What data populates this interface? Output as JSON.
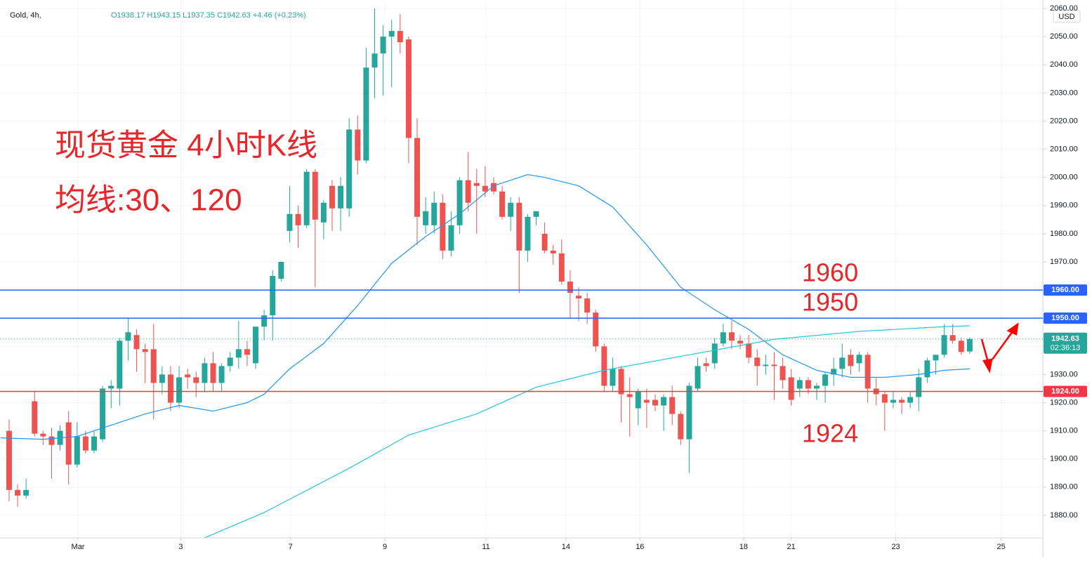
{
  "chart_data": {
    "type": "candlestick",
    "symbol": "Gold, 4h,",
    "ohlc_label": "O1938.17 H1943.15 L1937.35 C1942.63 +4.46 (+0.23%)",
    "currency": "USD",
    "annotations": [
      "现货黄金 4小时K线",
      "均线:30、120",
      "1960",
      "1950",
      "1924"
    ],
    "up_color": "#26a69a",
    "down_color": "#ef5350",
    "open": [
      1910,
      1889,
      1887,
      1920.5,
      1909,
      1908,
      1905,
      1913,
      1898,
      1908,
      1903,
      1907,
      1925,
      1925,
      1942,
      1944,
      1939,
      1939,
      1927,
      1930,
      1920,
      1930,
      1929,
      1927,
      1934,
      1927,
      1933,
      1936,
      1939,
      1934,
      1947,
      1951,
      1964,
      1981,
      1987,
      1983,
      2002,
      1984,
      1997,
      1989,
      1989,
      2017,
      2006,
      2039,
      2044,
      2050,
      2052,
      2049,
      2014,
      1983,
      1983,
      1991,
      1974,
      1983,
      1999,
      1998,
      1997,
      1998,
      1995,
      1986,
      1991,
      1974,
      1986,
      1980,
      1974,
      1973,
      1963,
      1958,
      1957,
      1952,
      1940,
      1926,
      1932,
      1923,
      1918,
      1921,
      1921,
      1919,
      1922,
      1916,
      1907,
      1925,
      1934,
      1934,
      1941,
      1945,
      1942,
      1941,
      1936,
      1933,
      1933.5,
      1933,
      1929,
      1925,
      1928,
      1925,
      1926,
      1930,
      1932,
      1937,
      1934,
      1937,
      1925,
      1923,
      1920,
      1921,
      1920,
      1922,
      1929,
      1935,
      1937,
      1944,
      1942,
      1938.17
    ],
    "high": [
      1914,
      1891,
      1893,
      1924,
      1910,
      1911,
      1912,
      1917,
      1913,
      1910,
      1910,
      1926,
      1928,
      1943,
      1950,
      1946,
      1941,
      1948,
      1933,
      1933,
      1933,
      1932,
      1931,
      1936,
      1938,
      1934,
      1938,
      1949,
      1942,
      1947,
      1953,
      1967,
      1970,
      1997,
      1990,
      2003,
      2003,
      1992,
      1999,
      2000,
      2021,
      2022,
      2046,
      2060,
      2054,
      2056,
      2058,
      2050,
      2021,
      1993,
      1995,
      1994,
      1988,
      2000,
      2009,
      2003,
      2004,
      2000,
      1997,
      1993,
      1993,
      1987,
      1988,
      1984,
      1976,
      1978,
      1967,
      1961,
      1959,
      1953,
      1941,
      1936,
      1933,
      1929,
      1925,
      1925,
      1923,
      1923,
      1926,
      1917,
      1927,
      1936,
      1936,
      1943,
      1948,
      1949,
      1944,
      1944,
      1939,
      1937,
      1938,
      1936,
      1932,
      1929,
      1929,
      1927,
      1931,
      1936,
      1941,
      1939,
      1938,
      1938,
      1929,
      1924,
      1924,
      1922,
      1924,
      1932,
      1936,
      1937,
      1948,
      1948,
      1943,
      1943.15
    ],
    "low": [
      1885,
      1883,
      1886,
      1908,
      1905,
      1893,
      1903,
      1891,
      1897,
      1902,
      1902,
      1906,
      1918,
      1919,
      1935,
      1931,
      1927,
      1914,
      1923,
      1917,
      1918,
      1925,
      1922,
      1924,
      1924,
      1924,
      1931,
      1932,
      1933,
      1932,
      1942,
      1942,
      1963,
      1977,
      1975,
      1982,
      1961,
      1978,
      1981,
      1981,
      1986,
      2001,
      2005,
      2028,
      2029,
      2032,
      2044,
      2005,
      1976,
      1980,
      1980,
      1971,
      1972,
      1980,
      1988,
      1980,
      1993,
      1994,
      1985,
      1981,
      1959,
      1970,
      1983,
      1973,
      1969,
      1962,
      1950,
      1949,
      1948,
      1938,
      1924,
      1924,
      1913,
      1908,
      1912,
      1911,
      1917,
      1910,
      1912,
      1905,
      1895,
      1924,
      1931,
      1932,
      1940,
      1939,
      1939,
      1934,
      1926,
      1930,
      1921,
      1925,
      1919,
      1922,
      1923,
      1921,
      1920,
      1926,
      1929,
      1930,
      1931,
      1920,
      1919,
      1910,
      1918,
      1916,
      1918,
      1917,
      1927,
      1930,
      1936,
      1941,
      1937,
      1937.35
    ],
    "close": [
      1889,
      1887,
      1889,
      1909,
      1908,
      1905,
      1910,
      1898,
      1908,
      1903,
      1908,
      1925,
      1926,
      1942,
      1945,
      1939,
      1938,
      1927,
      1930,
      1920,
      1929,
      1929,
      1927,
      1934,
      1927,
      1933,
      1936,
      1939,
      1937,
      1947,
      1951,
      1965,
      1970,
      1987,
      1983,
      2002,
      1985,
      1991,
      1989,
      1997,
      2017,
      2006,
      2039,
      2044,
      2050,
      2052,
      2048,
      2014,
      1986,
      1988,
      1991,
      1974,
      1983,
      1999,
      1991,
      1997,
      1995,
      1995,
      1986,
      1991,
      1974,
      1986,
      1988,
      1974,
      1973,
      1963,
      1959,
      1957,
      1952,
      1940,
      1926,
      1932,
      1923,
      1922,
      1924,
      1920,
      1919,
      1922,
      1916,
      1907,
      1926,
      1933,
      1933,
      1941,
      1945,
      1942,
      1941,
      1936,
      1933,
      1933.5,
      1933,
      1928,
      1921,
      1928,
      1925,
      1926,
      1930,
      1932,
      1936,
      1933,
      1937,
      1925,
      1923,
      1920,
      1921,
      1920,
      1922,
      1929,
      1935,
      1937,
      1944,
      1942,
      1938,
      1942.63
    ],
    "lines": [
      {
        "color": "#2196f3",
        "x": [
          -1,
          4,
          8,
          12,
          16,
          20,
          24,
          28,
          30,
          33,
          37,
          41,
          45,
          49,
          53,
          57,
          61,
          63,
          67,
          71,
          75,
          79,
          83,
          87,
          91,
          95,
          99,
          103,
          107,
          110,
          113
        ],
        "values": [
          1907.5,
          1907,
          1908,
          1912,
          1916,
          1919,
          1917,
          1920,
          1923,
          1932,
          1941,
          1954.5,
          1969.5,
          1979,
          1987,
          1997,
          2001,
          2000,
          1997,
          1989.5,
          1976,
          1961,
          1953,
          1946,
          1937,
          1931.5,
          1929,
          1929,
          1930,
          1931.5,
          1932
        ]
      },
      {
        "color": "#26c6da",
        "x": [
          23,
          30,
          40,
          47,
          55,
          62,
          70,
          80,
          90,
          100,
          110,
          113
        ],
        "values": [
          1872,
          1881,
          1896.7,
          1908.5,
          1916,
          1925.5,
          1931.5,
          1937,
          1942.5,
          1945.3,
          1947,
          1947.3
        ]
      }
    ],
    "levels": [
      {
        "value": 1960,
        "label": "1960.00",
        "color": "#2962ff"
      },
      {
        "value": 1950,
        "label": "1950.00",
        "color": "#2962ff"
      },
      {
        "value": 1924,
        "label": "1924.00",
        "color": "#f23645"
      }
    ],
    "last_price": {
      "value": 1942.63,
      "label": "1942.63",
      "countdown": "02:36:13",
      "color": "#26a69a"
    },
    "ylim": [
      1872,
      2063
    ],
    "yticks": [
      {
        "value": 1880,
        "label": "1880.00"
      },
      {
        "value": 1890,
        "label": "1890.00"
      },
      {
        "value": 1900,
        "label": "1900.00"
      },
      {
        "value": 1910,
        "label": "1910.00"
      },
      {
        "value": 1920,
        "label": "1920.00"
      },
      {
        "value": 1930,
        "label": "1930.00"
      },
      {
        "value": 1940,
        "label": "1940.00"
      },
      {
        "value": 1950,
        "label": "1950.00"
      },
      {
        "value": 1960,
        "label": "1960.00"
      },
      {
        "value": 1970,
        "label": "1970.00"
      },
      {
        "value": 1980,
        "label": "1980.00"
      },
      {
        "value": 1990,
        "label": "1990.00"
      },
      {
        "value": 2000,
        "label": "2000.00"
      },
      {
        "value": 2010,
        "label": "2010.00"
      },
      {
        "value": 2020,
        "label": "2020.00"
      },
      {
        "value": 2030,
        "label": "2030.00"
      },
      {
        "value": 2040,
        "label": "2040.00"
      },
      {
        "value": 2050,
        "label": "2050.00"
      },
      {
        "value": 2060,
        "label": "2060.00"
      }
    ],
    "xlim": [
      -1.07,
      121.6
    ],
    "xticks": [
      {
        "value": 8.1,
        "label": "Mar"
      },
      {
        "value": 20.2,
        "label": "3"
      },
      {
        "value": 33.1,
        "label": "7"
      },
      {
        "value": 44.2,
        "label": "9"
      },
      {
        "value": 56.1,
        "label": "11"
      },
      {
        "value": 65.5,
        "label": "14"
      },
      {
        "value": 74.2,
        "label": "16"
      },
      {
        "value": 86.4,
        "label": "18"
      },
      {
        "value": 92,
        "label": "21"
      },
      {
        "value": 104.3,
        "label": "23"
      },
      {
        "value": 116.7,
        "label": "25"
      }
    ]
  }
}
